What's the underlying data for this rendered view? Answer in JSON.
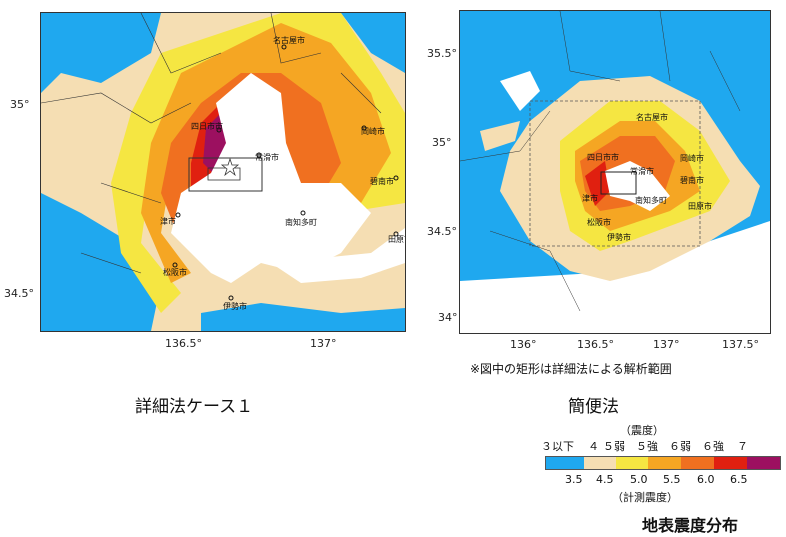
{
  "left_map": {
    "caption": "詳細法ケース１",
    "lat_ticks": [
      "35°",
      "34.5°"
    ],
    "lon_ticks": [
      "136.5°",
      "137°"
    ],
    "cities": [
      "名古屋市",
      "四日市市",
      "岡崎市",
      "常滑市",
      "碧南市",
      "津市",
      "南知多町",
      "田原市",
      "松阪市",
      "伊勢市"
    ]
  },
  "right_map": {
    "caption": "簡便法",
    "lat_ticks": [
      "35.5°",
      "35°",
      "34.5°",
      "34°"
    ],
    "lon_ticks": [
      "136°",
      "136.5°",
      "137°",
      "137.5°"
    ],
    "cities": [
      "名古屋市",
      "四日市市",
      "常滑市",
      "岡崎市",
      "碧南市",
      "津市",
      "南知多町",
      "田原市",
      "松阪市",
      "伊勢市"
    ]
  },
  "note": "※図中の矩形は詳細法による解析範囲",
  "legend": {
    "top_label": "（震度）",
    "classes": [
      "３以下",
      "４",
      "５弱",
      "５強",
      "６弱",
      "６強",
      "７"
    ],
    "values": [
      "3.5",
      "4.5",
      "5.0",
      "5.5",
      "6.0",
      "6.5"
    ],
    "bottom_label": "（計測震度）",
    "colors": [
      "#1fa8ef",
      "#f5deb3",
      "#f5e642",
      "#f5a623",
      "#f07020",
      "#e02010",
      "#9c1060",
      "#a0137a"
    ]
  },
  "figure_title": "地表震度分布"
}
